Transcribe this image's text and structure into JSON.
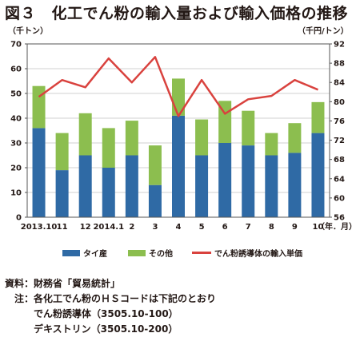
{
  "title": "図３　化工でん粉の輸入量および輸入価格の推移",
  "left_unit": "（千トン）",
  "right_unit": "（千円/トン）",
  "x_unit": "（年．月）",
  "legend": [
    {
      "label": "タイ産",
      "color": "#2f6aa5"
    },
    {
      "label": "その他",
      "color": "#8cbe4f"
    },
    {
      "label": "でん粉誘導体の輸入単価",
      "color": "#d9423e"
    }
  ],
  "notes": {
    "source": "資料：財務省「貿易統計」",
    "note_1": "注：各化工でん粉のＨＳコードは下記のとおり",
    "note_2": "でん粉誘導体（3505.10-100）",
    "note_3": "デキストリン（3505.10-200）"
  },
  "chart_data": {
    "type": "bar",
    "stacked": true,
    "categories": [
      "2013.10",
      "11",
      "12",
      "2014.1",
      "2",
      "3",
      "4",
      "5",
      "6",
      "7",
      "8",
      "9",
      "10"
    ],
    "series": [
      {
        "name": "タイ産",
        "axis": "left",
        "type": "bar",
        "color": "#2f6aa5",
        "values": [
          36,
          19,
          25,
          20,
          25,
          13,
          41,
          25,
          30,
          29,
          25,
          26,
          34
        ]
      },
      {
        "name": "その他",
        "axis": "left",
        "type": "bar",
        "color": "#8cbe4f",
        "values": [
          17,
          15,
          17,
          16,
          14,
          16,
          15,
          14.5,
          17,
          14,
          9,
          12,
          12.5
        ]
      },
      {
        "name": "でん粉誘導体の輸入単価",
        "axis": "right",
        "type": "line",
        "color": "#d9423e",
        "values": [
          81,
          84.5,
          83,
          89,
          84,
          89.3,
          77,
          84.5,
          77.5,
          80.5,
          81.2,
          84.5,
          82.5
        ]
      }
    ],
    "y_left": {
      "min": 0,
      "max": 70,
      "ticks": [
        0,
        10,
        20,
        30,
        40,
        50,
        60,
        70
      ]
    },
    "y_right": {
      "min": 56,
      "max": 92,
      "ticks": [
        56,
        60,
        64,
        68,
        72,
        76,
        80,
        84,
        88,
        92
      ]
    },
    "grid": true,
    "legend_position": "bottom"
  }
}
